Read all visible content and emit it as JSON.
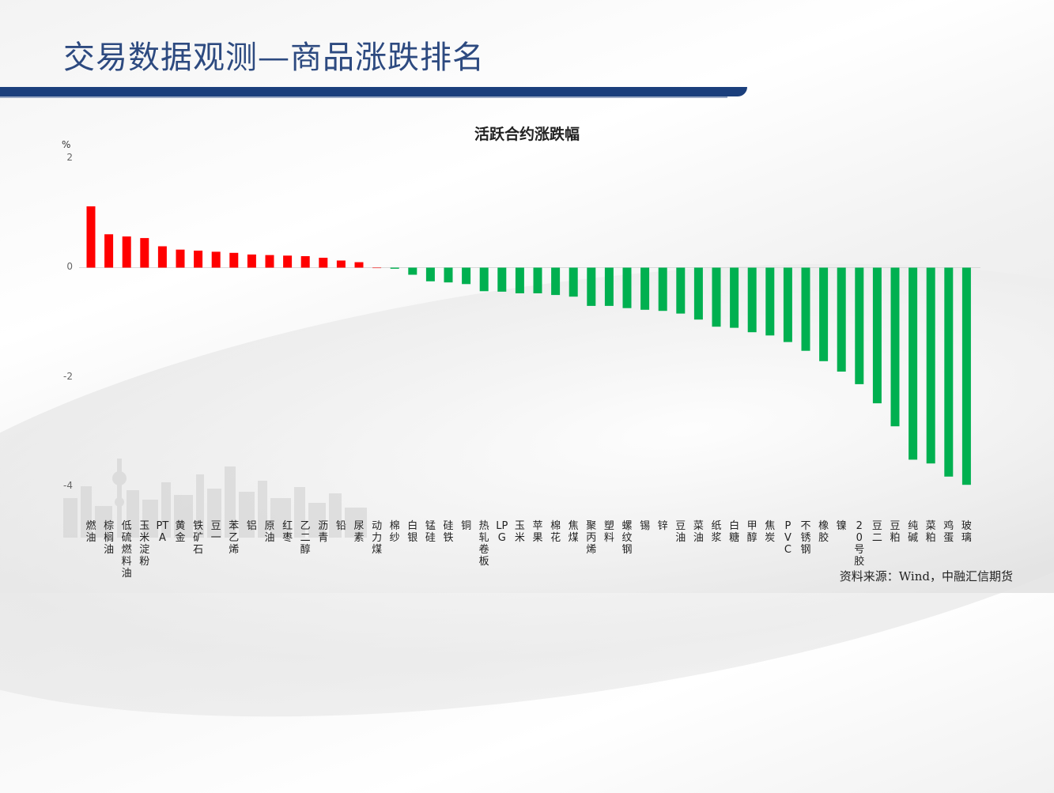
{
  "header": {
    "title": "交易数据观测—商品涨跌排名"
  },
  "source": "资料来源：Wind，中融汇信期货",
  "colors": {
    "title": "#2d4a80",
    "bar_bar": "#1b3f7c",
    "up": "#ff0000",
    "down": "#00b050"
  },
  "chart_data": {
    "type": "bar",
    "title": "活跃合约涨跌幅",
    "ylabel": "%",
    "ylim": [
      -4,
      2
    ],
    "yticks": [
      "2",
      "0",
      "-2",
      "-4"
    ],
    "categories": [
      "燃油",
      "棕榈油",
      "低硫燃料油",
      "玉米淀粉",
      "PTA",
      "黄金",
      "铁矿石",
      "豆一",
      "苯乙烯",
      "铝",
      "原油",
      "红枣",
      "乙二醇",
      "沥青",
      "铅",
      "尿素",
      "动力煤",
      "棉纱",
      "白银",
      "锰硅",
      "硅铁",
      "铜",
      "热轧卷板",
      "LPG",
      "玉米",
      "苹果",
      "棉花",
      "焦煤",
      "聚丙烯",
      "塑料",
      "螺纹钢",
      "锡",
      "锌",
      "豆油",
      "菜油",
      "纸浆",
      "白糖",
      "甲醇",
      "焦炭",
      "PVC",
      "不锈钢",
      "橡胶",
      "镍",
      "20号胶",
      "豆二",
      "豆粕",
      "纯碱",
      "菜粕",
      "鸡蛋",
      "玻璃"
    ],
    "values": [
      1.12,
      0.61,
      0.57,
      0.54,
      0.39,
      0.33,
      0.31,
      0.29,
      0.27,
      0.24,
      0.23,
      0.22,
      0.21,
      0.18,
      0.13,
      0.1,
      0.0,
      -0.02,
      -0.13,
      -0.25,
      -0.27,
      -0.3,
      -0.43,
      -0.44,
      -0.47,
      -0.47,
      -0.5,
      -0.53,
      -0.7,
      -0.7,
      -0.74,
      -0.77,
      -0.79,
      -0.84,
      -0.95,
      -1.08,
      -1.1,
      -1.18,
      -1.24,
      -1.36,
      -1.52,
      -1.71,
      -1.9,
      -2.13,
      -2.48,
      -2.9,
      -3.51,
      -3.58,
      -3.82,
      -3.97
    ]
  }
}
